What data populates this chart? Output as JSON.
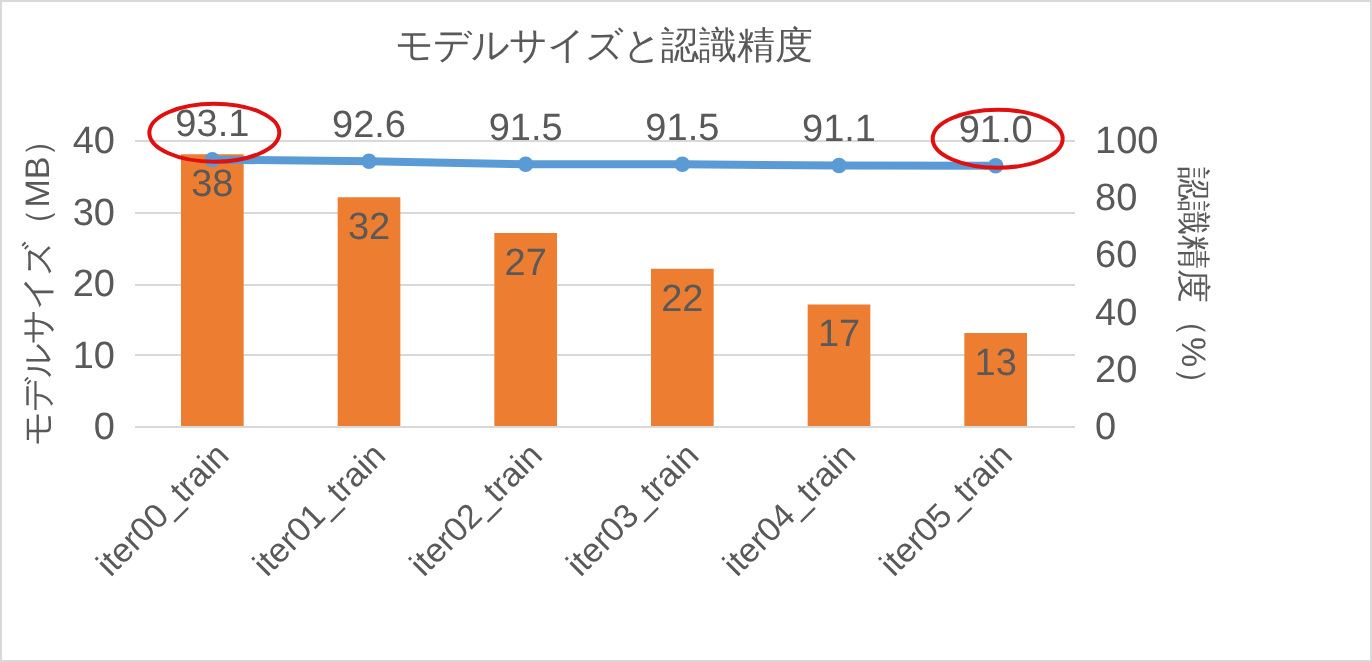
{
  "chart_data": {
    "type": "bar",
    "title": "モデルサイズと認識精度",
    "ylabel": "モデルサイズ（MB）",
    "y2label": "認識精度（%）",
    "categories": [
      "iter00_train",
      "iter01_train",
      "iter02_train",
      "iter03_train",
      "iter04_train",
      "iter05_train"
    ],
    "series": [
      {
        "color": "#ed7d31",
        "values": [
          38,
          32,
          27,
          22,
          17,
          13
        ]
      },
      {
        "type": "line",
        "axis": "y2",
        "color": "#5b9bd5",
        "values": [
          93.1,
          92.6,
          91.5,
          91.5,
          91.1,
          91.0
        ],
        "value_labels": [
          "93.1",
          "92.6",
          "91.5",
          "91.5",
          "91.1",
          "91.0"
        ]
      }
    ],
    "ylim": [
      0,
      40
    ],
    "yticks": [
      0,
      10,
      20,
      30,
      40
    ],
    "y2lim": [
      0,
      100
    ],
    "y2ticks": [
      0,
      20,
      40,
      60,
      80,
      100
    ],
    "grid": "y",
    "data_labels": true,
    "marker": "circle",
    "line_style": "solid"
  }
}
